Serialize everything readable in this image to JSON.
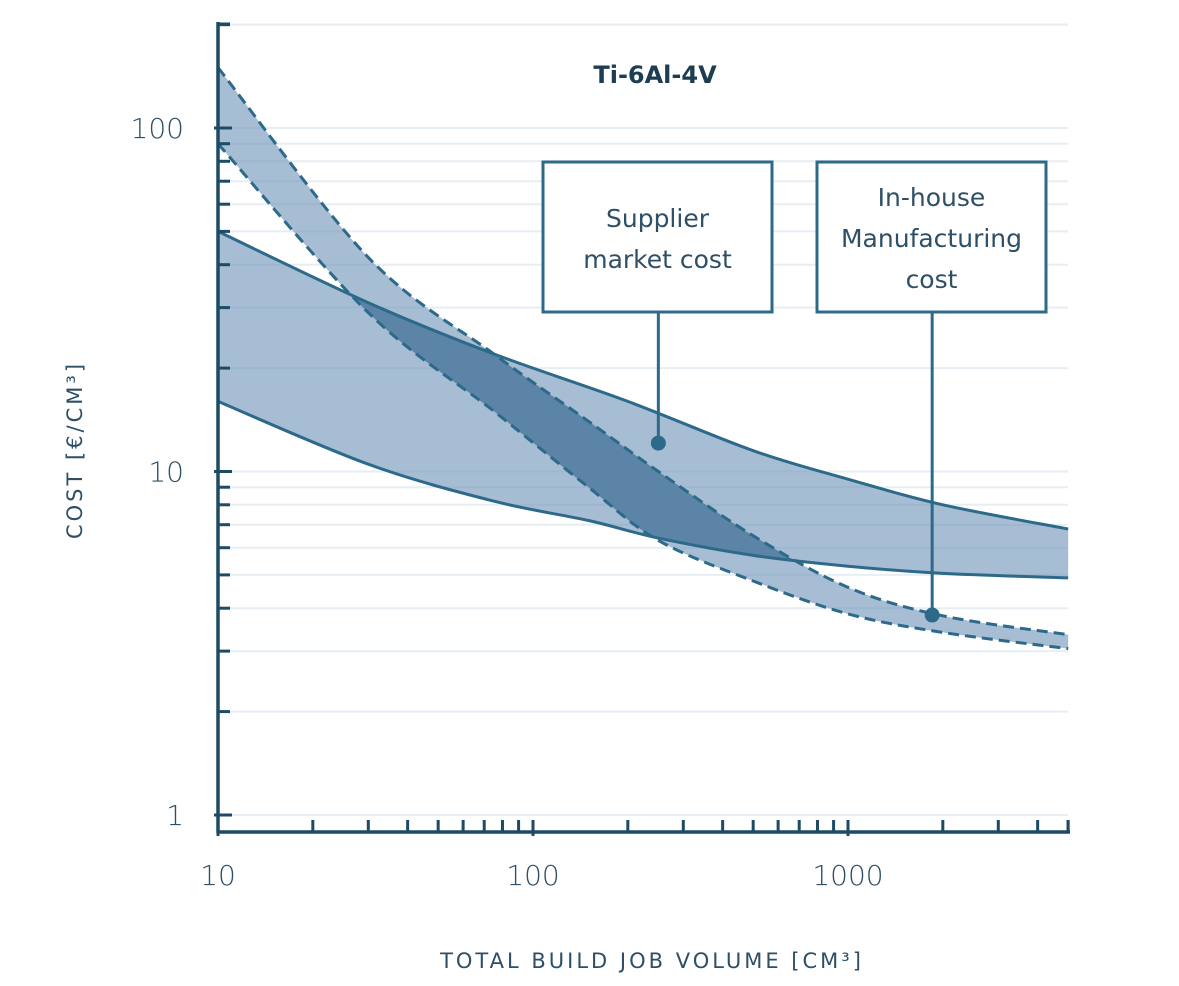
{
  "chart_data": {
    "type": "area",
    "title": "Ti-6Al-4V",
    "xlabel": "TOTAL BUILD JOB VOLUME [CM³]",
    "ylabel": "COST [€/CM³]",
    "xscale": "log",
    "yscale": "log",
    "xlim": [
      10,
      5000
    ],
    "ylim": [
      1,
      200
    ],
    "xticks": [
      10,
      100,
      1000
    ],
    "xtick_labels": [
      "10",
      "100",
      "1000"
    ],
    "yticks": [
      1,
      10,
      100
    ],
    "ytick_labels": [
      "1",
      "10",
      "100"
    ],
    "grid": true,
    "series": [
      {
        "name": "Supplier market cost",
        "style": "solid band",
        "upper": {
          "x": [
            10,
            30,
            75,
            200,
            500,
            1000,
            2000,
            5000
          ],
          "y": [
            50,
            31,
            22,
            16,
            11.5,
            9.5,
            8,
            6.8
          ]
        },
        "lower": {
          "x": [
            10,
            30,
            75,
            150,
            250,
            500,
            1000,
            2000,
            5000
          ],
          "y": [
            16,
            10.5,
            8.2,
            7.2,
            6.4,
            5.7,
            5.3,
            5.05,
            4.9
          ]
        }
      },
      {
        "name": "In-house Manufacturing cost",
        "style": "dashed band",
        "upper": {
          "x": [
            10,
            30,
            75,
            150,
            250,
            500,
            1000,
            2000,
            5000
          ],
          "y": [
            150,
            42,
            22,
            14,
            10,
            6.5,
            4.6,
            3.8,
            3.35
          ]
        },
        "lower": {
          "x": [
            10,
            30,
            75,
            150,
            250,
            500,
            1000,
            2000,
            5000
          ],
          "y": [
            90,
            29,
            15,
            9,
            6.3,
            4.8,
            3.85,
            3.4,
            3.05
          ]
        }
      }
    ],
    "annotations": [
      {
        "text": "Supplier\nmarket cost",
        "target": {
          "x": 250,
          "y": 12.1
        }
      },
      {
        "text": "In-house\nManufacturing\ncost",
        "target": {
          "x": 1850,
          "y": 3.82
        }
      }
    ],
    "colors": {
      "band_fill": "#6f95b9",
      "overlap_fill": "#3c6a8f",
      "line": "#2d6a8a",
      "axis": "#1d4a64",
      "grid": "#e6eef4",
      "callout_border": "#2d6a8a"
    }
  }
}
